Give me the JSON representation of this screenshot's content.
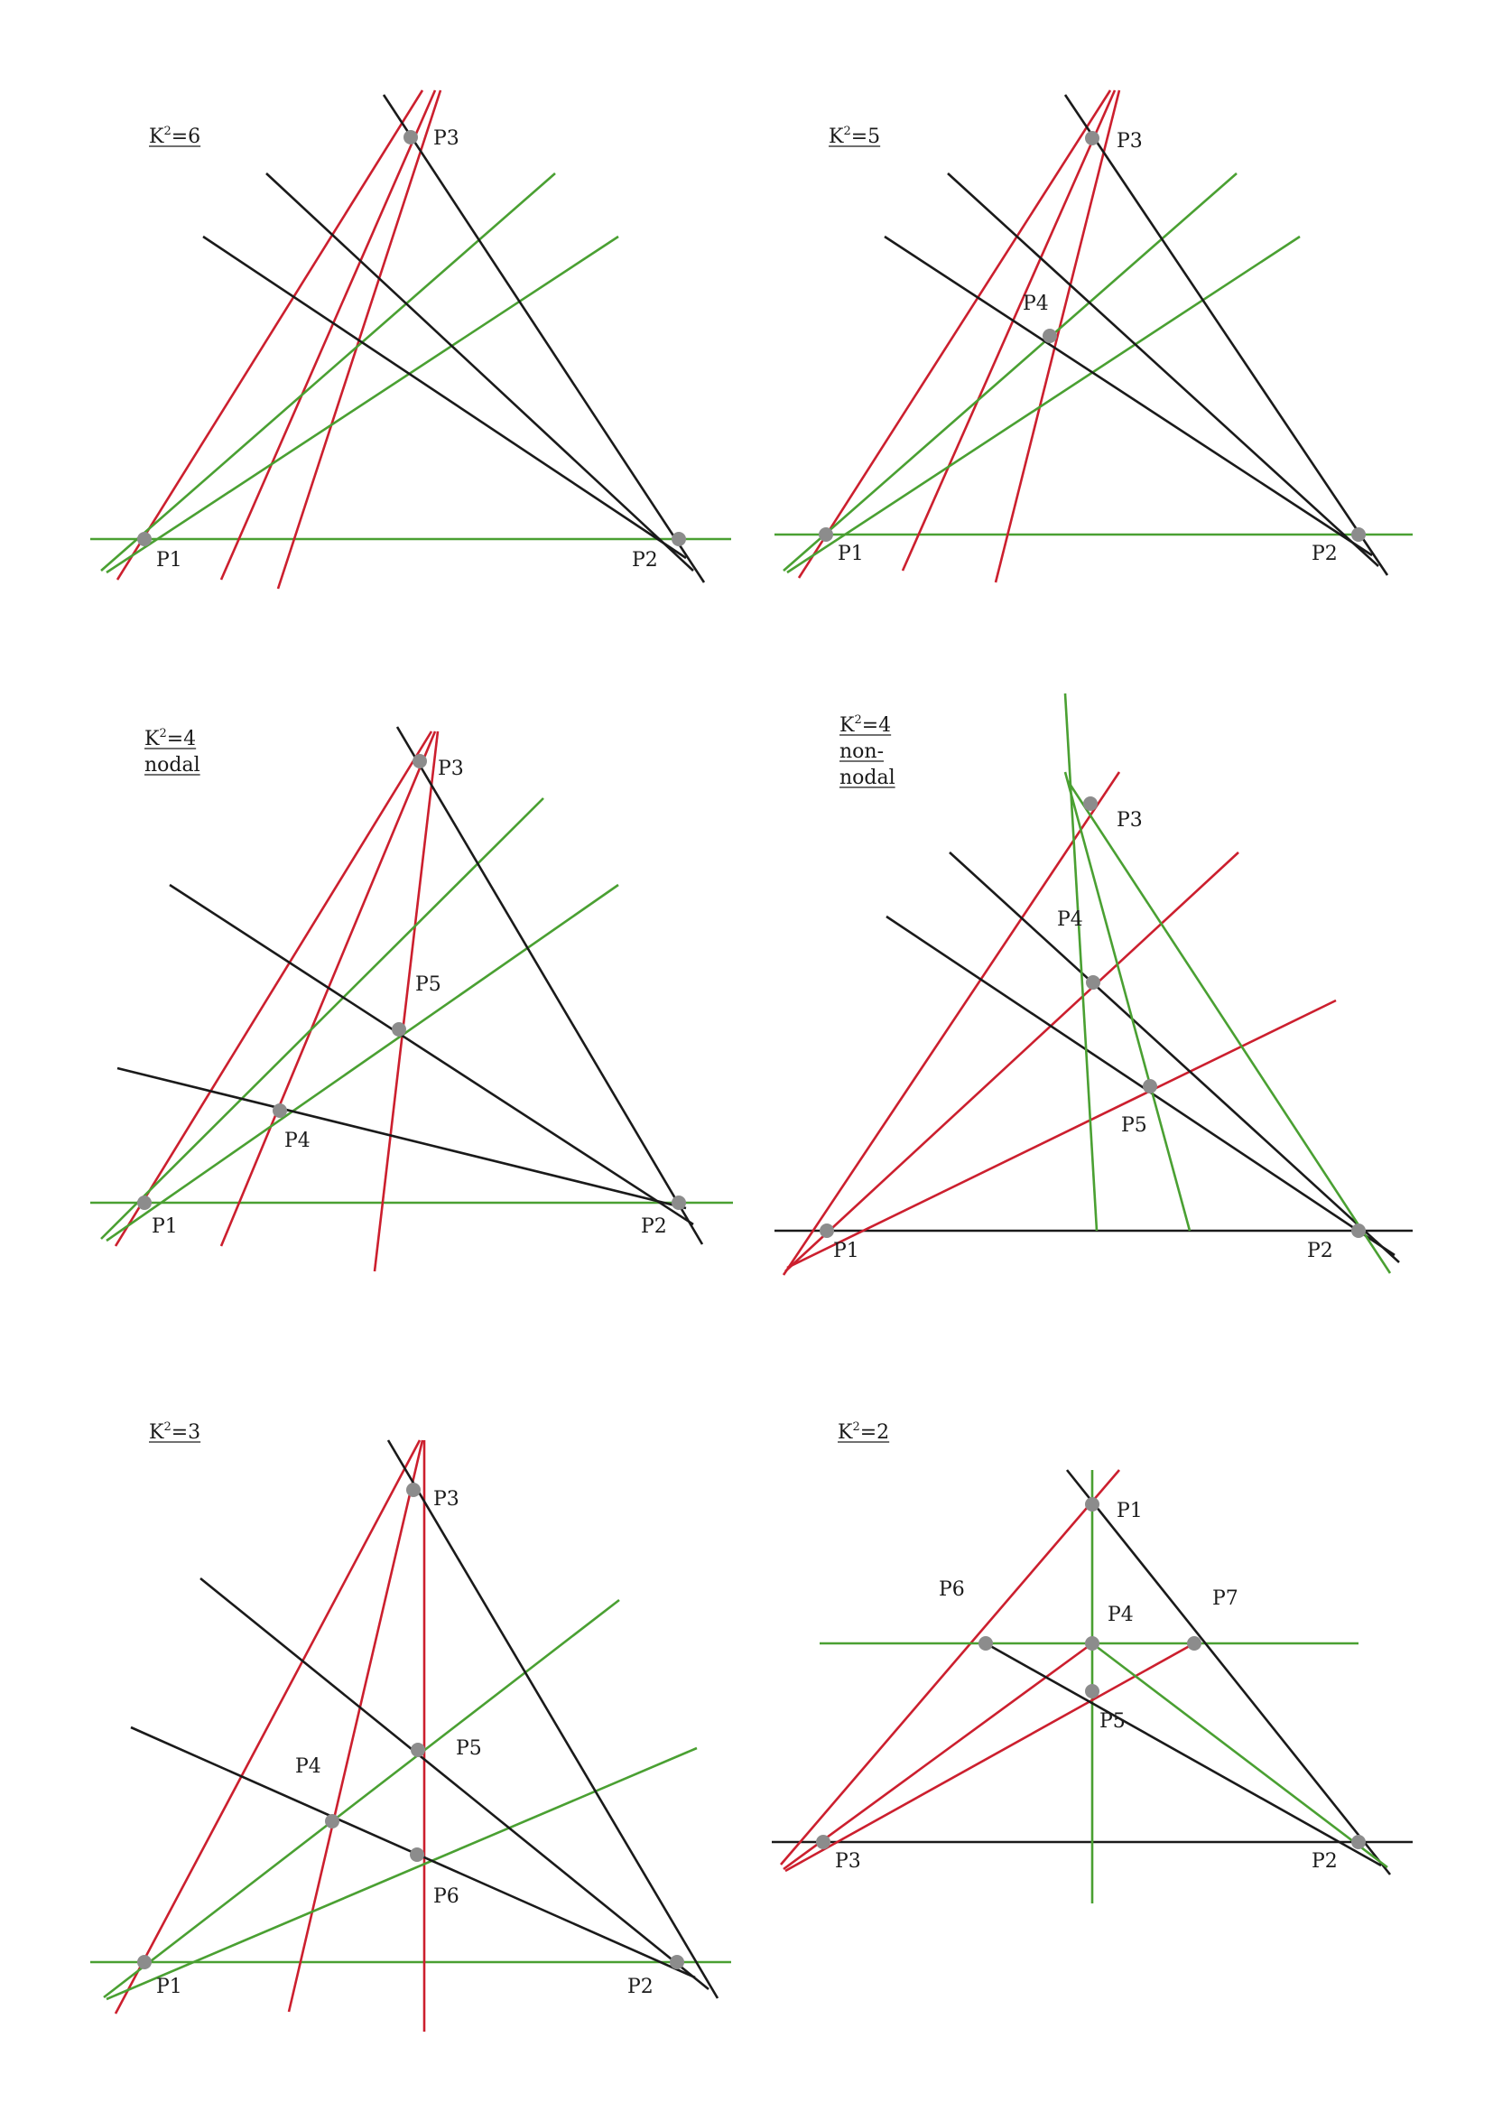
{
  "colors": {
    "red": "#cc1f2e",
    "green": "#4aa032",
    "black": "#1a1a1a",
    "point": "#8c8c8c"
  },
  "diagrams": [
    {
      "id": "k2-6",
      "title": [
        {
          "base": "K",
          "sup": "2",
          "rest": "=6"
        }
      ],
      "points": [
        {
          "label": "P1"
        },
        {
          "label": "P2"
        },
        {
          "label": "P3"
        }
      ]
    },
    {
      "id": "k2-5",
      "title": [
        {
          "base": "K",
          "sup": "2",
          "rest": "=5"
        }
      ],
      "points": [
        {
          "label": "P1"
        },
        {
          "label": "P2"
        },
        {
          "label": "P3"
        },
        {
          "label": "P4"
        }
      ]
    },
    {
      "id": "k2-4-nodal",
      "title": [
        {
          "base": "K",
          "sup": "2",
          "rest": "=4"
        },
        {
          "text": "nodal"
        }
      ],
      "points": [
        {
          "label": "P1"
        },
        {
          "label": "P2"
        },
        {
          "label": "P3"
        },
        {
          "label": "P4"
        },
        {
          "label": "P5"
        }
      ]
    },
    {
      "id": "k2-4-non-nodal",
      "title": [
        {
          "base": "K",
          "sup": "2",
          "rest": "=4"
        },
        {
          "text": "non-"
        },
        {
          "text": "nodal"
        }
      ],
      "points": [
        {
          "label": "P1"
        },
        {
          "label": "P2"
        },
        {
          "label": "P3"
        },
        {
          "label": "P4"
        },
        {
          "label": "P5"
        }
      ]
    },
    {
      "id": "k2-3",
      "title": [
        {
          "base": "K",
          "sup": "2",
          "rest": "=3"
        }
      ],
      "points": [
        {
          "label": "P1"
        },
        {
          "label": "P2"
        },
        {
          "label": "P3"
        },
        {
          "label": "P4"
        },
        {
          "label": "P5"
        },
        {
          "label": "P6"
        }
      ]
    },
    {
      "id": "k2-2",
      "title": [
        {
          "base": "K",
          "sup": "2",
          "rest": "=2"
        }
      ],
      "points": [
        {
          "label": "P1"
        },
        {
          "label": "P2"
        },
        {
          "label": "P3"
        },
        {
          "label": "P4"
        },
        {
          "label": "P5"
        },
        {
          "label": "P6"
        },
        {
          "label": "P7"
        }
      ]
    }
  ]
}
